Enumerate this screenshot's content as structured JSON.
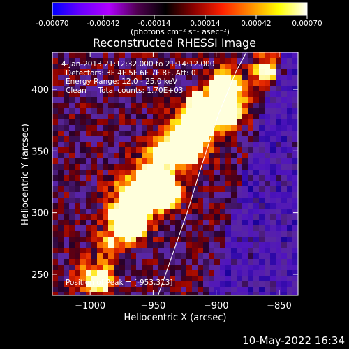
{
  "chart_data": {
    "type": "heatmap",
    "title": "Reconstructed RHESSI Image",
    "xlabel": "Heliocentric X (arcsec)",
    "ylabel": "Heliocentric Y (arcsec)",
    "xlim": [
      -1030,
      -835
    ],
    "ylim": [
      233,
      430
    ],
    "x_ticks": [
      -1000,
      -950,
      -900,
      -850
    ],
    "x_tick_labels": [
      "−1000",
      "−950",
      "−900",
      "−850"
    ],
    "y_ticks": [
      250,
      300,
      350,
      400
    ],
    "y_tick_labels": [
      "250",
      "300",
      "350",
      "400"
    ],
    "colorbar": {
      "range": [
        -0.0007,
        0.0007
      ],
      "ticks": [
        -0.0007,
        -0.00042,
        -0.00014,
        0.00014,
        0.00042,
        0.0007
      ],
      "tick_labels": [
        "-0.00070",
        "-0.00042",
        "-0.00014",
        "0.00014",
        "0.00042",
        "0.00070"
      ],
      "units_label": "(photons cm⁻² s⁻¹ asec⁻²)",
      "colors": [
        "#0000ff",
        "#6a00ff",
        "#b000ff",
        "#500050",
        "#000000",
        "#8b0000",
        "#ff2000",
        "#ff8c00",
        "#ffff00",
        "#ffffff"
      ]
    },
    "annotations": {
      "time_range": "4-Jan-2013 21:12:32.000 to 21:14:12.000",
      "detectors": "Detectors: 3F 4F 5F 6F 7F 8F, Att: 0",
      "energy": "Energy Range: 12.0 - 25.0 keV",
      "method_and_counts": "Clean     Total counts: 1.70E+03",
      "peak": "Position of Peak = [-953,313]"
    },
    "limb_curve": {
      "description": "solar limb",
      "points": [
        [
          -946,
          233
        ],
        [
          -935,
          265
        ],
        [
          -923,
          300
        ],
        [
          -911,
          340
        ],
        [
          -898,
          380
        ],
        [
          -884,
          415
        ],
        [
          -876,
          430
        ]
      ]
    },
    "peak_position": [
      -953,
      313
    ]
  },
  "footer": {
    "timestamp": "10-May-2022 16:34"
  }
}
